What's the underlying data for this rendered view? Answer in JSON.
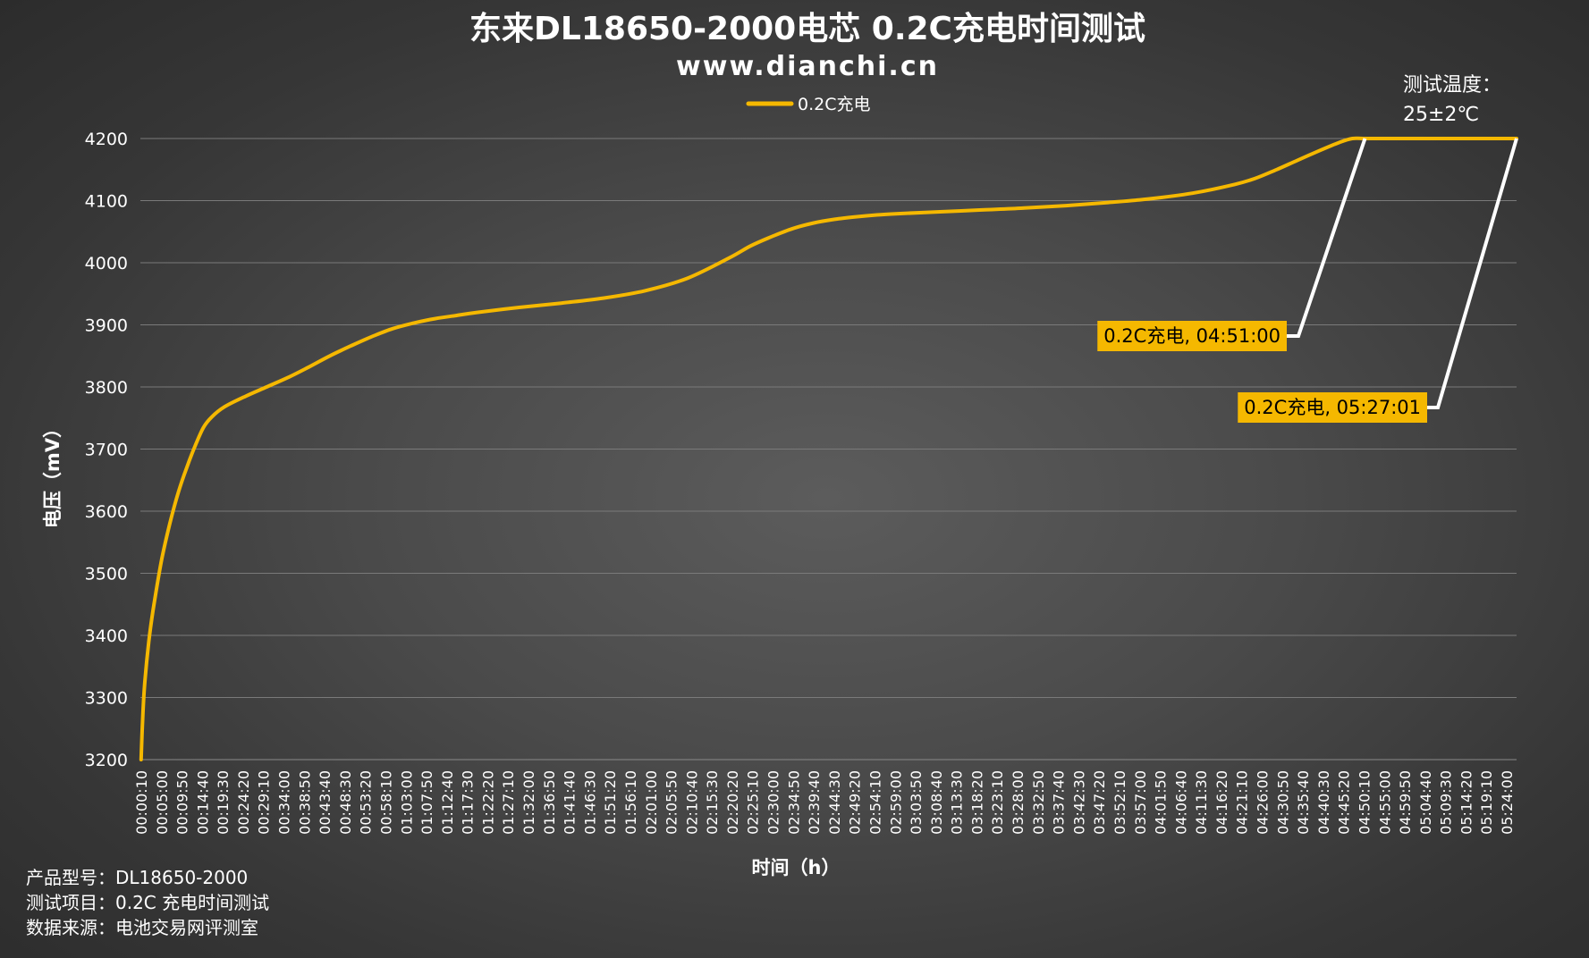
{
  "chart_data": {
    "type": "line",
    "title": "东来DL18650-2000电芯 0.2C充电时间测试",
    "subtitle": "www.dianchi.cn",
    "xlabel": "时间（h）",
    "ylabel": "电压（mV）",
    "ylim": [
      3200,
      4200
    ],
    "yticks": [
      3200,
      3300,
      3400,
      3500,
      3600,
      3700,
      3800,
      3900,
      4000,
      4100,
      4200
    ],
    "grid": "horizontal",
    "legend": "top-center",
    "x_tick_labels": [
      "00:00:10",
      "00:05:00",
      "00:09:50",
      "00:14:40",
      "00:19:30",
      "00:24:20",
      "00:29:10",
      "00:34:00",
      "00:38:50",
      "00:43:40",
      "00:48:30",
      "00:53:20",
      "00:58:10",
      "01:03:00",
      "01:07:50",
      "01:12:40",
      "01:17:30",
      "01:22:20",
      "01:27:10",
      "01:32:00",
      "01:36:50",
      "01:41:40",
      "01:46:30",
      "01:51:20",
      "01:56:10",
      "02:01:00",
      "02:05:50",
      "02:10:40",
      "02:15:30",
      "02:20:20",
      "02:25:10",
      "02:30:00",
      "02:34:50",
      "02:39:40",
      "02:44:30",
      "02:49:20",
      "02:54:10",
      "02:59:00",
      "03:03:50",
      "03:08:40",
      "03:13:30",
      "03:18:20",
      "03:23:10",
      "03:28:00",
      "03:32:50",
      "03:37:40",
      "03:42:30",
      "03:47:20",
      "03:52:10",
      "03:57:00",
      "04:01:50",
      "04:06:40",
      "04:11:30",
      "04:16:20",
      "04:21:10",
      "04:26:00",
      "04:30:50",
      "04:35:40",
      "04:40:30",
      "04:45:20",
      "04:50:10",
      "04:55:00",
      "04:59:50",
      "05:04:40",
      "05:09:30",
      "05:14:20",
      "05:19:10",
      "05:24:00"
    ],
    "series": [
      {
        "name": "0.2C充电",
        "color": "#f5b800",
        "x_minutes": [
          0.17,
          0.5,
          1,
          2,
          3,
          5,
          7,
          9,
          11,
          13,
          15,
          17,
          20,
          25,
          30,
          35,
          40,
          45,
          50,
          55,
          60,
          65,
          70,
          75,
          80,
          90,
          100,
          110,
          120,
          130,
          140,
          145,
          150,
          155,
          160,
          165,
          170,
          175,
          180,
          190,
          200,
          210,
          220,
          230,
          240,
          250,
          260,
          265,
          270,
          275,
          280,
          285,
          288,
          291,
          300,
          310,
          320,
          327.02
        ],
        "values": [
          3200,
          3260,
          3320,
          3390,
          3440,
          3520,
          3580,
          3630,
          3670,
          3705,
          3735,
          3752,
          3768,
          3785,
          3800,
          3815,
          3832,
          3850,
          3866,
          3881,
          3894,
          3903,
          3910,
          3915,
          3920,
          3928,
          3935,
          3943,
          3955,
          3975,
          4008,
          4027,
          4042,
          4055,
          4064,
          4070,
          4074,
          4077,
          4079,
          4082,
          4085,
          4088,
          4092,
          4097,
          4103,
          4112,
          4126,
          4136,
          4150,
          4165,
          4180,
          4194,
          4200,
          4200,
          4200,
          4200,
          4200,
          4200
        ]
      }
    ],
    "annotations": [
      {
        "label": "0.2C充电, 04:51:00",
        "x_minutes": 291,
        "value": 4200
      },
      {
        "label": "0.2C充电, 05:27:01",
        "x_minutes": 327.02,
        "value": 4200
      }
    ],
    "corner_note": [
      "测试温度：",
      "25±2℃"
    ]
  },
  "footer": {
    "line1": "产品型号：DL18650-2000",
    "line2": "测试项目：0.2C 充电时间测试",
    "line3": "数据来源：电池交易网评测室"
  }
}
